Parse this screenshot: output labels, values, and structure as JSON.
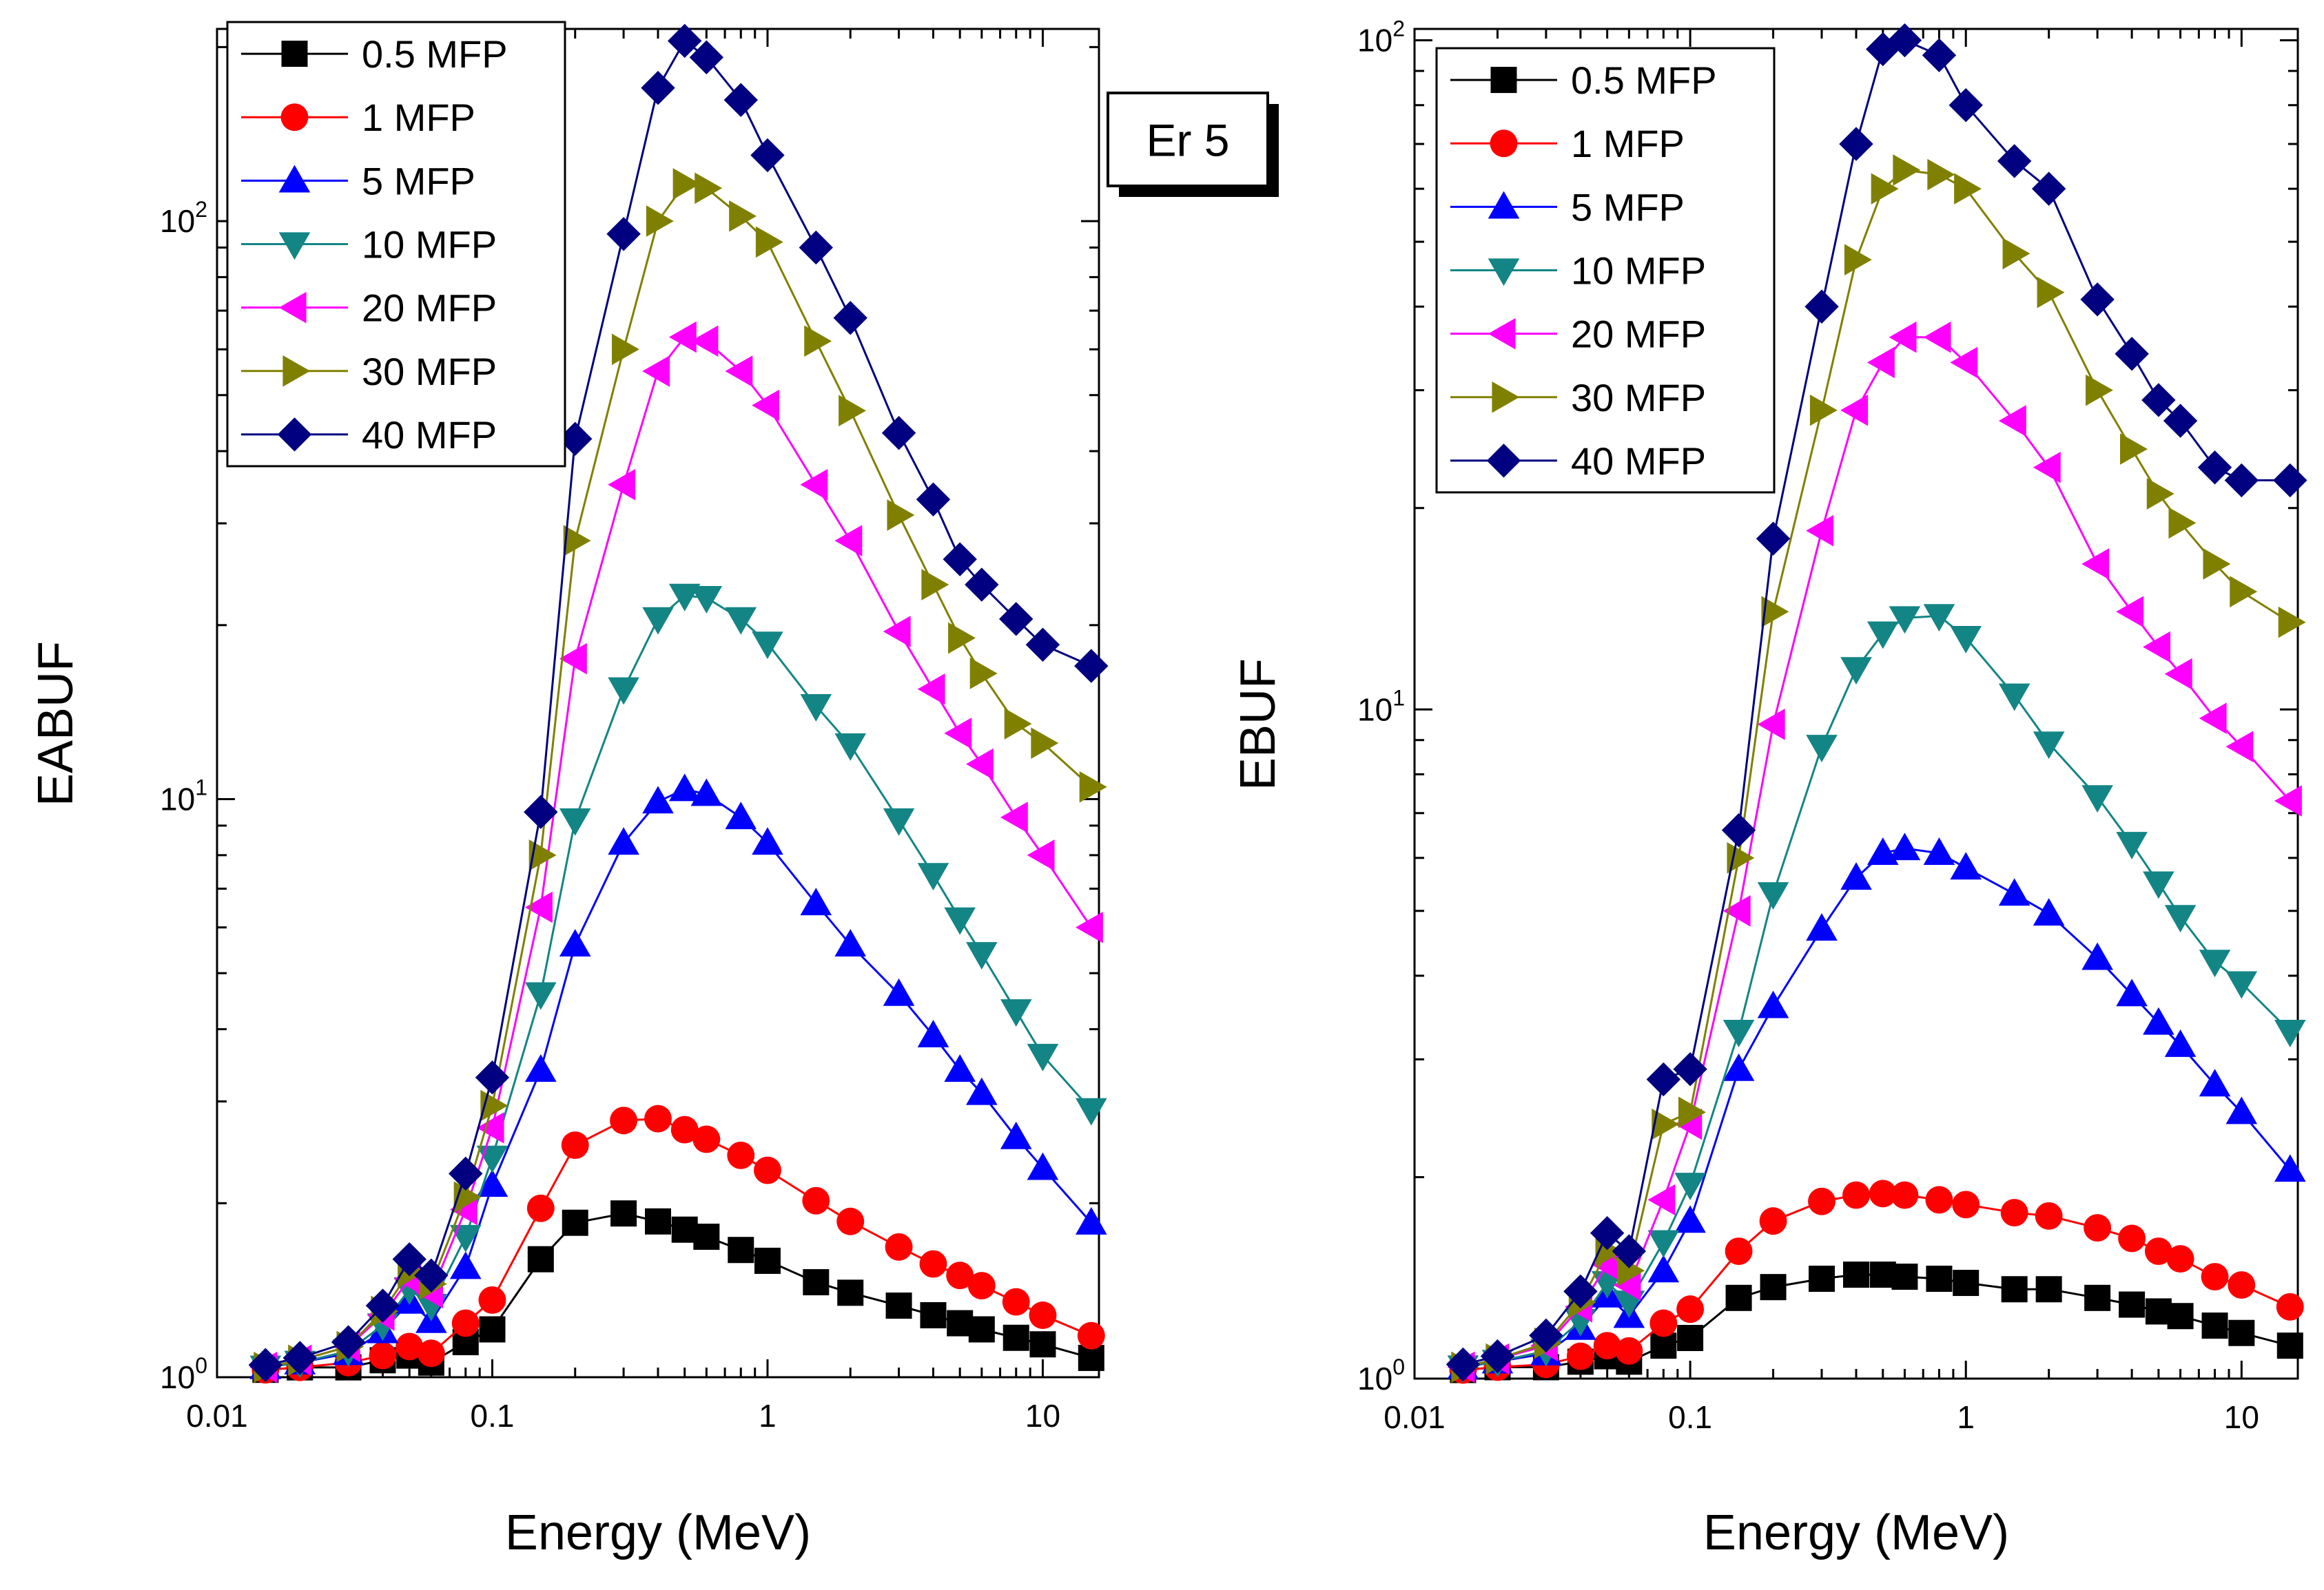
{
  "chart_data": [
    {
      "type": "line",
      "xscale": "log",
      "yscale": "log",
      "xlabel": "Energy (MeV)",
      "ylabel": "EABUF",
      "xlim": [
        0.01,
        16
      ],
      "ylim": [
        1,
        215
      ],
      "x_ticks": [
        {
          "value": 0.01,
          "label": "0.01"
        },
        {
          "value": 0.1,
          "label": "0.1"
        },
        {
          "value": 1,
          "label": "1"
        },
        {
          "value": 10,
          "label": "10"
        }
      ],
      "y_ticks": [
        {
          "value": 1,
          "base": "10",
          "exp": "0"
        },
        {
          "value": 10,
          "base": "10",
          "exp": "1"
        },
        {
          "value": 100,
          "base": "10",
          "exp": "2"
        }
      ],
      "annotation": "Er 5",
      "legend_position": "top-left",
      "x": [
        0.015,
        0.02,
        0.03,
        0.04,
        0.05,
        0.06,
        0.08,
        0.1,
        0.15,
        0.2,
        0.3,
        0.4,
        0.5,
        0.6,
        0.8,
        1,
        1.5,
        2,
        3,
        4,
        5,
        6,
        8,
        10,
        15
      ],
      "series": [
        {
          "name": "0.5 MFP",
          "color": "#000000",
          "marker": "square",
          "values": [
            1.03,
            1.04,
            1.04,
            1.07,
            1.09,
            1.06,
            1.15,
            1.21,
            1.6,
            1.85,
            1.92,
            1.86,
            1.8,
            1.75,
            1.66,
            1.59,
            1.46,
            1.4,
            1.33,
            1.28,
            1.24,
            1.21,
            1.17,
            1.14,
            1.08
          ]
        },
        {
          "name": "1 MFP",
          "color": "#ff0000",
          "marker": "circle",
          "values": [
            1.03,
            1.04,
            1.06,
            1.09,
            1.13,
            1.1,
            1.24,
            1.36,
            1.96,
            2.52,
            2.78,
            2.8,
            2.68,
            2.58,
            2.42,
            2.28,
            2.02,
            1.86,
            1.68,
            1.57,
            1.5,
            1.44,
            1.35,
            1.28,
            1.18
          ]
        },
        {
          "name": "5 MFP",
          "color": "#0000ff",
          "marker": "triangle-up",
          "values": [
            1.04,
            1.06,
            1.1,
            1.2,
            1.35,
            1.25,
            1.55,
            2.15,
            3.4,
            5.6,
            8.4,
            9.9,
            10.4,
            10.2,
            9.3,
            8.4,
            6.6,
            5.6,
            4.6,
            3.9,
            3.4,
            3.1,
            2.6,
            2.3,
            1.85
          ]
        },
        {
          "name": "10 MFP",
          "color": "#138585",
          "marker": "triangle-down",
          "values": [
            1.04,
            1.06,
            1.11,
            1.23,
            1.42,
            1.33,
            1.75,
            2.4,
            4.6,
            9.2,
            15.5,
            20.5,
            22.5,
            22.3,
            20.5,
            18.6,
            14.5,
            12.4,
            9.2,
            7.4,
            6.2,
            5.4,
            4.3,
            3.6,
            2.9
          ]
        },
        {
          "name": "20 MFP",
          "color": "#ff00ff",
          "marker": "triangle-left",
          "values": [
            1.04,
            1.07,
            1.13,
            1.28,
            1.48,
            1.4,
            1.95,
            2.7,
            6.5,
            17.5,
            35,
            55,
            63,
            62,
            55,
            48,
            35,
            28,
            19.5,
            15.5,
            13,
            11.5,
            9.3,
            8,
            6
          ]
        },
        {
          "name": "30 MFP",
          "color": "#808000",
          "marker": "triangle-right",
          "values": [
            1.04,
            1.07,
            1.13,
            1.3,
            1.52,
            1.45,
            2.05,
            2.95,
            8,
            28,
            60,
            100,
            116,
            114,
            102,
            92,
            62,
            47,
            31,
            23.5,
            19,
            16.5,
            13.5,
            12.5,
            10.5
          ]
        },
        {
          "name": "40 MFP",
          "color": "#000080",
          "marker": "diamond",
          "values": [
            1.05,
            1.08,
            1.15,
            1.33,
            1.6,
            1.5,
            2.25,
            3.3,
            9.5,
            42,
            95,
            170,
            205,
            192,
            162,
            130,
            90,
            68,
            43,
            33,
            26,
            23.5,
            20.5,
            18.5,
            17
          ]
        }
      ]
    },
    {
      "type": "line",
      "xscale": "log",
      "yscale": "log",
      "xlabel": "Energy (MeV)",
      "ylabel": "EBUF",
      "xlim": [
        0.01,
        16
      ],
      "ylim": [
        1,
        104
      ],
      "x_ticks": [
        {
          "value": 0.01,
          "label": "0.01"
        },
        {
          "value": 0.1,
          "label": "0.1"
        },
        {
          "value": 1,
          "label": "1"
        },
        {
          "value": 10,
          "label": "10"
        }
      ],
      "y_ticks": [
        {
          "value": 1,
          "base": "10",
          "exp": "0"
        },
        {
          "value": 10,
          "base": "10",
          "exp": "1"
        },
        {
          "value": 100,
          "base": "10",
          "exp": "2"
        }
      ],
      "legend_position": "top-left",
      "x": [
        0.015,
        0.02,
        0.03,
        0.04,
        0.05,
        0.06,
        0.08,
        0.1,
        0.15,
        0.2,
        0.3,
        0.4,
        0.5,
        0.6,
        0.8,
        1,
        1.5,
        2,
        3,
        4,
        5,
        6,
        8,
        10,
        15
      ],
      "series": [
        {
          "name": "0.5 MFP",
          "color": "#000000",
          "marker": "square",
          "values": [
            1.03,
            1.04,
            1.04,
            1.06,
            1.08,
            1.06,
            1.12,
            1.15,
            1.32,
            1.37,
            1.41,
            1.43,
            1.43,
            1.42,
            1.41,
            1.39,
            1.36,
            1.36,
            1.32,
            1.29,
            1.26,
            1.24,
            1.2,
            1.17,
            1.12
          ]
        },
        {
          "name": "1 MFP",
          "color": "#ff0000",
          "marker": "circle",
          "values": [
            1.03,
            1.04,
            1.05,
            1.08,
            1.12,
            1.1,
            1.21,
            1.27,
            1.55,
            1.72,
            1.84,
            1.88,
            1.89,
            1.88,
            1.85,
            1.82,
            1.77,
            1.75,
            1.68,
            1.62,
            1.55,
            1.51,
            1.42,
            1.38,
            1.28
          ]
        },
        {
          "name": "5 MFP",
          "color": "#0000ff",
          "marker": "triangle-up",
          "values": [
            1.04,
            1.06,
            1.09,
            1.19,
            1.33,
            1.24,
            1.45,
            1.72,
            2.9,
            3.6,
            4.7,
            5.6,
            6.1,
            6.2,
            6.1,
            5.8,
            5.3,
            4.95,
            4.25,
            3.75,
            3.4,
            3.15,
            2.75,
            2.5,
            2.05
          ]
        },
        {
          "name": "10 MFP",
          "color": "#138585",
          "marker": "triangle-down",
          "values": [
            1.04,
            1.06,
            1.1,
            1.22,
            1.39,
            1.3,
            1.6,
            1.95,
            3.3,
            5.3,
            8.8,
            11.5,
            13,
            13.7,
            13.8,
            12.8,
            10.5,
            8.9,
            7.4,
            6.3,
            5.5,
            4.9,
            4.2,
            3.9,
            3.3
          ]
        },
        {
          "name": "20 MFP",
          "color": "#ff00ff",
          "marker": "triangle-left",
          "values": [
            1.04,
            1.07,
            1.12,
            1.28,
            1.48,
            1.38,
            1.85,
            2.4,
            5,
            9.5,
            18.5,
            28,
            33,
            36,
            36,
            33,
            27,
            23,
            16.5,
            14,
            12.4,
            11.3,
            9.7,
            8.8,
            7.3
          ]
        },
        {
          "name": "30 MFP",
          "color": "#808000",
          "marker": "triangle-right",
          "values": [
            1.04,
            1.07,
            1.13,
            1.3,
            1.55,
            1.45,
            2.4,
            2.5,
            6,
            14,
            28,
            47,
            60,
            64,
            63,
            60,
            48,
            42,
            30,
            24.5,
            21,
            19,
            16.5,
            15,
            13.5
          ]
        },
        {
          "name": "40 MFP",
          "color": "#000080",
          "marker": "diamond",
          "values": [
            1.05,
            1.08,
            1.16,
            1.35,
            1.65,
            1.55,
            2.8,
            2.9,
            6.6,
            18,
            40,
            70,
            97,
            100,
            95,
            80,
            66,
            60,
            41,
            34,
            29,
            27,
            23,
            22,
            22
          ]
        }
      ]
    }
  ]
}
